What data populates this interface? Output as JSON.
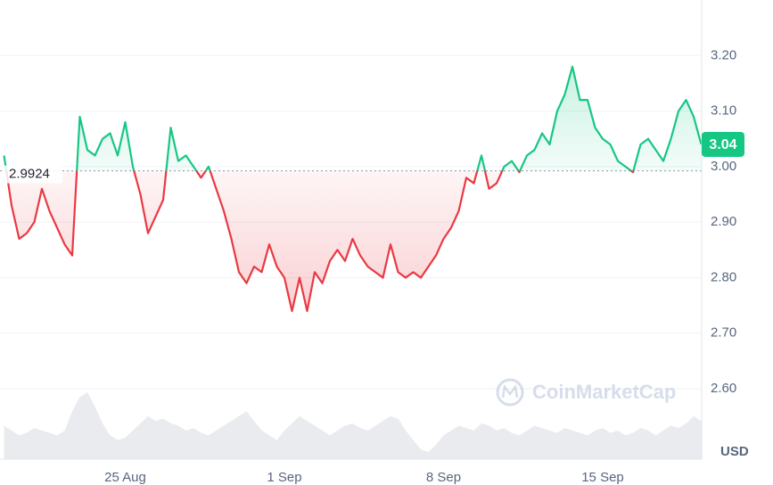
{
  "chart_data": {
    "type": "line",
    "categories": [
      null,
      null,
      null,
      null,
      null,
      null,
      null,
      null,
      null,
      null,
      null,
      null,
      null,
      null,
      null,
      null,
      "25 Aug",
      null,
      null,
      null,
      null,
      null,
      null,
      null,
      null,
      null,
      null,
      null,
      null,
      null,
      null,
      null,
      null,
      null,
      null,
      null,
      null,
      "1 Sep",
      null,
      null,
      null,
      null,
      null,
      null,
      null,
      null,
      null,
      null,
      null,
      null,
      null,
      null,
      null,
      null,
      null,
      null,
      null,
      null,
      "8 Sep",
      null,
      null,
      null,
      null,
      null,
      null,
      null,
      null,
      null,
      null,
      null,
      null,
      null,
      null,
      null,
      null,
      null,
      null,
      null,
      null,
      "15 Sep",
      null,
      null,
      null,
      null,
      null,
      null,
      null,
      null,
      null,
      null,
      null,
      null,
      null
    ],
    "values": [
      3.02,
      2.93,
      2.87,
      2.88,
      2.9,
      2.96,
      2.92,
      2.89,
      2.86,
      2.84,
      3.09,
      3.03,
      3.02,
      3.05,
      3.06,
      3.02,
      3.08,
      3.0,
      2.95,
      2.88,
      2.91,
      2.94,
      3.07,
      3.01,
      3.02,
      3.0,
      2.98,
      3.0,
      2.96,
      2.92,
      2.87,
      2.81,
      2.79,
      2.82,
      2.81,
      2.86,
      2.82,
      2.8,
      2.74,
      2.8,
      2.74,
      2.81,
      2.79,
      2.83,
      2.85,
      2.83,
      2.87,
      2.84,
      2.82,
      2.81,
      2.8,
      2.86,
      2.81,
      2.8,
      2.81,
      2.8,
      2.82,
      2.84,
      2.87,
      2.89,
      2.92,
      2.98,
      2.97,
      3.02,
      2.96,
      2.97,
      3.0,
      3.01,
      2.99,
      3.02,
      3.03,
      3.06,
      3.04,
      3.1,
      3.13,
      3.18,
      3.12,
      3.12,
      3.07,
      3.05,
      3.04,
      3.01,
      3.0,
      2.99,
      3.04,
      3.05,
      3.03,
      3.01,
      3.05,
      3.1,
      3.12,
      3.09,
      3.04
    ],
    "volume": [
      14,
      12,
      10,
      11,
      13,
      12,
      11,
      10,
      12,
      20,
      26,
      28,
      22,
      15,
      10,
      8,
      9,
      12,
      15,
      18,
      16,
      17,
      15,
      14,
      12,
      13,
      11,
      10,
      12,
      14,
      16,
      18,
      20,
      16,
      12,
      10,
      8,
      12,
      15,
      18,
      16,
      14,
      12,
      10,
      12,
      14,
      15,
      13,
      12,
      14,
      16,
      18,
      17,
      12,
      8,
      4,
      3,
      6,
      10,
      12,
      14,
      13,
      12,
      15,
      14,
      12,
      13,
      11,
      10,
      12,
      14,
      13,
      12,
      11,
      13,
      12,
      11,
      10,
      12,
      13,
      11,
      12,
      10,
      11,
      13,
      12,
      10,
      12,
      14,
      13,
      15,
      18,
      16
    ],
    "baseline": 2.9924,
    "current_value": 3.04,
    "ylim": [
      2.47,
      3.3
    ],
    "yticks": [
      {
        "value": 2.6,
        "label": "2.60"
      },
      {
        "value": 2.7,
        "label": "2.70"
      },
      {
        "value": 2.8,
        "label": "2.80"
      },
      {
        "value": 2.9,
        "label": "2.90"
      },
      {
        "value": 3.0,
        "label": "3.00"
      },
      {
        "value": 3.1,
        "label": "3.10"
      },
      {
        "value": 3.2,
        "label": "3.20"
      }
    ],
    "y_unit": "USD",
    "watermark": "CoinMarketCap",
    "grid": true,
    "up_color": "#16c784",
    "down_color": "#ea3943",
    "volume_color": "#e9ebef"
  }
}
